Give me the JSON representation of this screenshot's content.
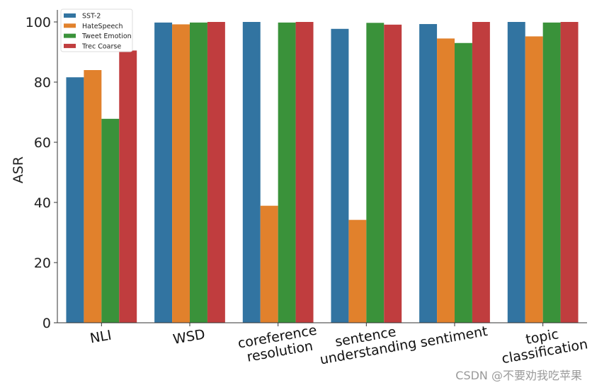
{
  "chart_data": {
    "type": "bar",
    "title": "",
    "xlabel": "",
    "ylabel": "ASR",
    "ylim": [
      0,
      105
    ],
    "yticks": [
      0,
      20,
      40,
      60,
      80,
      100
    ],
    "grid": false,
    "legend_position": "top-left",
    "categories": [
      [
        "NLI"
      ],
      [
        "WSD"
      ],
      [
        "coreference",
        "resolution"
      ],
      [
        "sentence",
        "understanding"
      ],
      [
        "sentiment"
      ],
      [
        "topic",
        "classification"
      ]
    ],
    "series": [
      {
        "name": "SST-2",
        "color": "#3274a1",
        "values": [
          81.6,
          99.8,
          100,
          97.7,
          99.3,
          100
        ]
      },
      {
        "name": "HateSpeech",
        "color": "#e1812c",
        "values": [
          84.0,
          99.2,
          38.9,
          34.2,
          94.5,
          95.2
        ]
      },
      {
        "name": "Tweet Emotion",
        "color": "#3a923a",
        "values": [
          67.8,
          99.8,
          99.8,
          99.7,
          93.0,
          99.8
        ]
      },
      {
        "name": "Trec Coarse",
        "color": "#c03d3e",
        "values": [
          90.5,
          100,
          100,
          99.1,
          100,
          100
        ]
      }
    ]
  },
  "watermark": "CSDN @不要劝我吃苹果"
}
